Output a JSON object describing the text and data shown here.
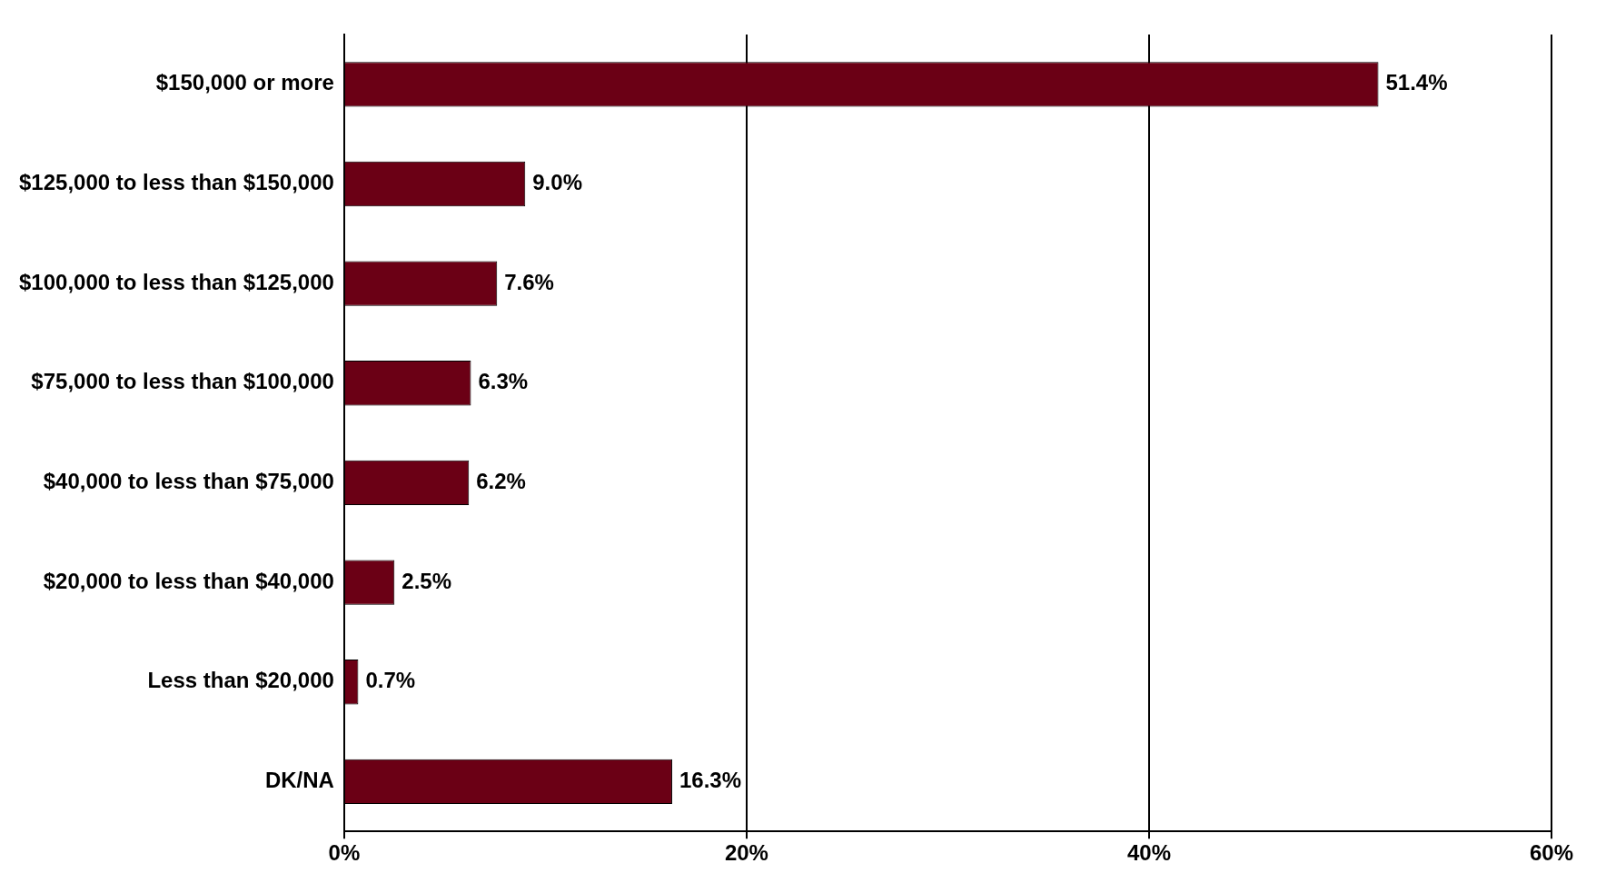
{
  "chart_data": {
    "type": "bar",
    "orientation": "horizontal",
    "categories": [
      "$150,000 or more",
      "$125,000 to less than $150,000",
      "$100,000 to less than $125,000",
      "$75,000 to less than $100,000",
      "$40,000 to less than $75,000",
      "$20,000 to less than $40,000",
      "Less than $20,000",
      "DK/NA"
    ],
    "values": [
      51.4,
      9.0,
      7.6,
      6.3,
      6.2,
      2.5,
      0.7,
      16.3
    ],
    "value_labels": [
      "51.4%",
      "9.0%",
      "7.6%",
      "6.3%",
      "6.2%",
      "2.5%",
      "0.7%",
      "16.3%"
    ],
    "color": "#6b0015",
    "xlim": [
      0,
      60
    ],
    "xticks": [
      {
        "value": 0,
        "label": "0%"
      },
      {
        "value": 20,
        "label": "20%"
      },
      {
        "value": 40,
        "label": "40%"
      },
      {
        "value": 60,
        "label": "60%"
      }
    ],
    "grid": "x",
    "legend": false
  }
}
